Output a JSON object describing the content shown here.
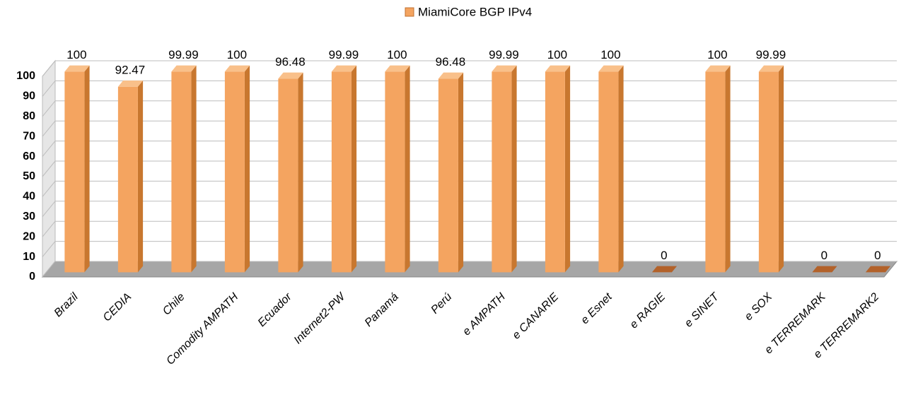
{
  "chart_data": {
    "type": "bar3d",
    "series": [
      {
        "name": "MiamiCore BGP IPv4",
        "color": "#f4a460",
        "values": [
          100,
          92.47,
          99.99,
          100,
          96.48,
          99.99,
          100,
          96.48,
          99.99,
          100,
          100,
          0,
          100,
          99.99,
          0,
          0
        ]
      }
    ],
    "categories": [
      "Brazil",
      "CEDIA",
      "Chile",
      "Comodity AMPATH",
      "Ecuador",
      "Internet2-PW",
      "Panamá",
      "Perú",
      "e AMPATH",
      "e CANARIE",
      "e Esnet",
      "e RAGIE",
      "e SINET",
      "e SOX",
      "e TERREMARK",
      "e TERREMARK2"
    ],
    "ylim": [
      0,
      100
    ],
    "yticks": [
      0,
      10,
      20,
      30,
      40,
      50,
      60,
      70,
      80,
      90,
      100
    ],
    "grid": true,
    "legend": "top"
  }
}
